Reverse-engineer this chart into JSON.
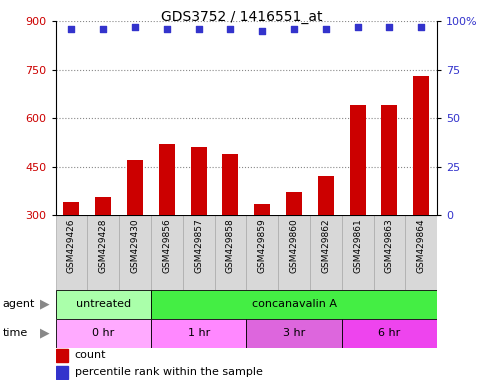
{
  "title": "GDS3752 / 1416551_at",
  "samples": [
    "GSM429426",
    "GSM429428",
    "GSM429430",
    "GSM429856",
    "GSM429857",
    "GSM429858",
    "GSM429859",
    "GSM429860",
    "GSM429862",
    "GSM429861",
    "GSM429863",
    "GSM429864"
  ],
  "counts": [
    340,
    355,
    470,
    520,
    510,
    490,
    335,
    370,
    420,
    640,
    640,
    730
  ],
  "percentile_ranks": [
    96,
    96,
    97,
    96,
    96,
    96,
    95,
    96,
    96,
    97,
    97,
    97
  ],
  "ylim_left": [
    300,
    900
  ],
  "ylim_right": [
    0,
    100
  ],
  "yticks_left": [
    300,
    450,
    600,
    750,
    900
  ],
  "yticks_right": [
    0,
    25,
    50,
    75,
    100
  ],
  "right_tick_labels": [
    "0",
    "25",
    "50",
    "75",
    "100%"
  ],
  "bar_color": "#cc0000",
  "dot_color": "#3333cc",
  "agent_groups": [
    {
      "label": "untreated",
      "start": 0,
      "end": 3,
      "color": "#aaffaa"
    },
    {
      "label": "concanavalin A",
      "start": 3,
      "end": 12,
      "color": "#44ee44"
    }
  ],
  "time_groups": [
    {
      "label": "0 hr",
      "start": 0,
      "end": 3,
      "color": "#ffaaff"
    },
    {
      "label": "1 hr",
      "start": 3,
      "end": 6,
      "color": "#ff88ff"
    },
    {
      "label": "3 hr",
      "start": 6,
      "end": 9,
      "color": "#dd66dd"
    },
    {
      "label": "6 hr",
      "start": 9,
      "end": 12,
      "color": "#ee44ee"
    }
  ],
  "grid_color": "#888888",
  "label_color_left": "#cc0000",
  "label_color_right": "#3333cc",
  "label_gray_bg": "#d8d8d8",
  "label_cell_edge": "#aaaaaa"
}
